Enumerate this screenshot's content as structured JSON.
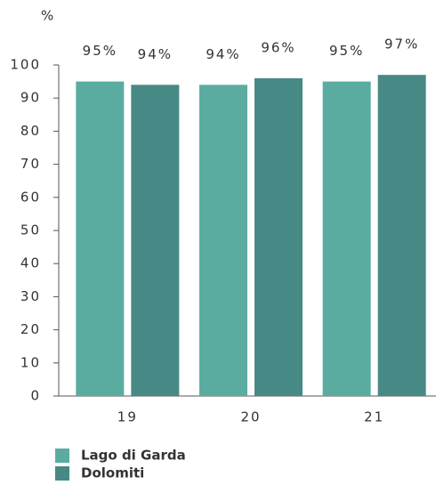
{
  "chart_data": {
    "type": "bar",
    "y_label": "%",
    "categories": [
      "19",
      "20",
      "21"
    ],
    "series": [
      {
        "name": "Lago di Garda",
        "color": "#5aaca1",
        "values": [
          95,
          94,
          95
        ],
        "value_labels": [
          "95%",
          "94%",
          "95%"
        ]
      },
      {
        "name": "Dolomiti",
        "color": "#478985",
        "values": [
          94,
          96,
          97
        ],
        "value_labels": [
          "94%",
          "96%",
          "97%"
        ]
      }
    ],
    "ylim": [
      0,
      100
    ],
    "yticks": [
      0,
      10,
      20,
      30,
      40,
      50,
      60,
      70,
      80,
      90,
      100
    ],
    "grid": false,
    "legend": "bottom-left"
  }
}
